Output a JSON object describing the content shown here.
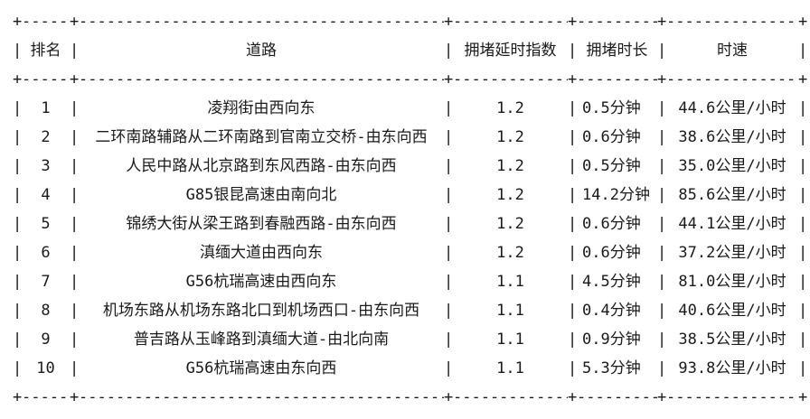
{
  "page": {
    "background_color": "#ffffff",
    "text_color": "#1a1a1a"
  },
  "table": {
    "border": {
      "horizontal": "-",
      "vertical": "|",
      "junction": "+"
    },
    "columns": [
      "排名",
      "道路",
      "拥堵延时指数",
      "拥堵时长",
      "时速"
    ],
    "rows": [
      {
        "rank": "1",
        "road": "凌翔街由西向东",
        "delay_index": "1.2",
        "duration": "0.5分钟",
        "speed": "44.6公里/小时"
      },
      {
        "rank": "2",
        "road": "二环南路辅路从二环南路到官南立交桥-由东向西",
        "delay_index": "1.2",
        "duration": "0.6分钟",
        "speed": "38.6公里/小时"
      },
      {
        "rank": "3",
        "road": "人民中路从北京路到东风西路-由东向西",
        "delay_index": "1.2",
        "duration": "0.5分钟",
        "speed": "35.0公里/小时"
      },
      {
        "rank": "4",
        "road": "G85银昆高速由南向北",
        "delay_index": "1.2",
        "duration": "14.2分钟",
        "speed": "85.6公里/小时"
      },
      {
        "rank": "5",
        "road": "锦绣大街从梁王路到春融西路-由东向西",
        "delay_index": "1.2",
        "duration": "0.6分钟",
        "speed": "44.1公里/小时"
      },
      {
        "rank": "6",
        "road": "滇缅大道由西向东",
        "delay_index": "1.2",
        "duration": "0.6分钟",
        "speed": "37.2公里/小时"
      },
      {
        "rank": "7",
        "road": "G56杭瑞高速由西向东",
        "delay_index": "1.1",
        "duration": "4.5分钟",
        "speed": "81.0公里/小时"
      },
      {
        "rank": "8",
        "road": "机场东路从机场东路北口到机场西口-由东向西",
        "delay_index": "1.1",
        "duration": "0.4分钟",
        "speed": "40.6公里/小时"
      },
      {
        "rank": "9",
        "road": "普吉路从玉峰路到滇缅大道-由北向南",
        "delay_index": "1.1",
        "duration": "0.9分钟",
        "speed": "38.5公里/小时"
      },
      {
        "rank": "10",
        "road": "G56杭瑞高速由东向西",
        "delay_index": "1.1",
        "duration": "5.3分钟",
        "speed": "93.8公里/小时"
      }
    ]
  },
  "chart_data": {
    "type": "table",
    "title": "",
    "columns": [
      "排名",
      "道路",
      "拥堵延时指数",
      "拥堵时长",
      "时速"
    ],
    "rows": [
      [
        1,
        "凌翔街由西向东",
        1.2,
        "0.5分钟",
        "44.6公里/小时"
      ],
      [
        2,
        "二环南路辅路从二环南路到官南立交桥-由东向西",
        1.2,
        "0.6分钟",
        "38.6公里/小时"
      ],
      [
        3,
        "人民中路从北京路到东风西路-由东向西",
        1.2,
        "0.5分钟",
        "35.0公里/小时"
      ],
      [
        4,
        "G85银昆高速由南向北",
        1.2,
        "14.2分钟",
        "85.6公里/小时"
      ],
      [
        5,
        "锦绣大街从梁王路到春融西路-由东向西",
        1.2,
        "0.6分钟",
        "44.1公里/小时"
      ],
      [
        6,
        "滇缅大道由西向东",
        1.2,
        "0.6分钟",
        "37.2公里/小时"
      ],
      [
        7,
        "G56杭瑞高速由西向东",
        1.1,
        "4.5分钟",
        "81.0公里/小时"
      ],
      [
        8,
        "机场东路从机场东路北口到机场西口-由东向西",
        1.1,
        "0.4分钟",
        "40.6公里/小时"
      ],
      [
        9,
        "普吉路从玉峰路到滇缅大道-由北向南",
        1.1,
        "0.9分钟",
        "38.5公里/小时"
      ],
      [
        10,
        "G56杭瑞高速由东向西",
        1.1,
        "5.3分钟",
        "93.8公里/小时"
      ]
    ]
  }
}
